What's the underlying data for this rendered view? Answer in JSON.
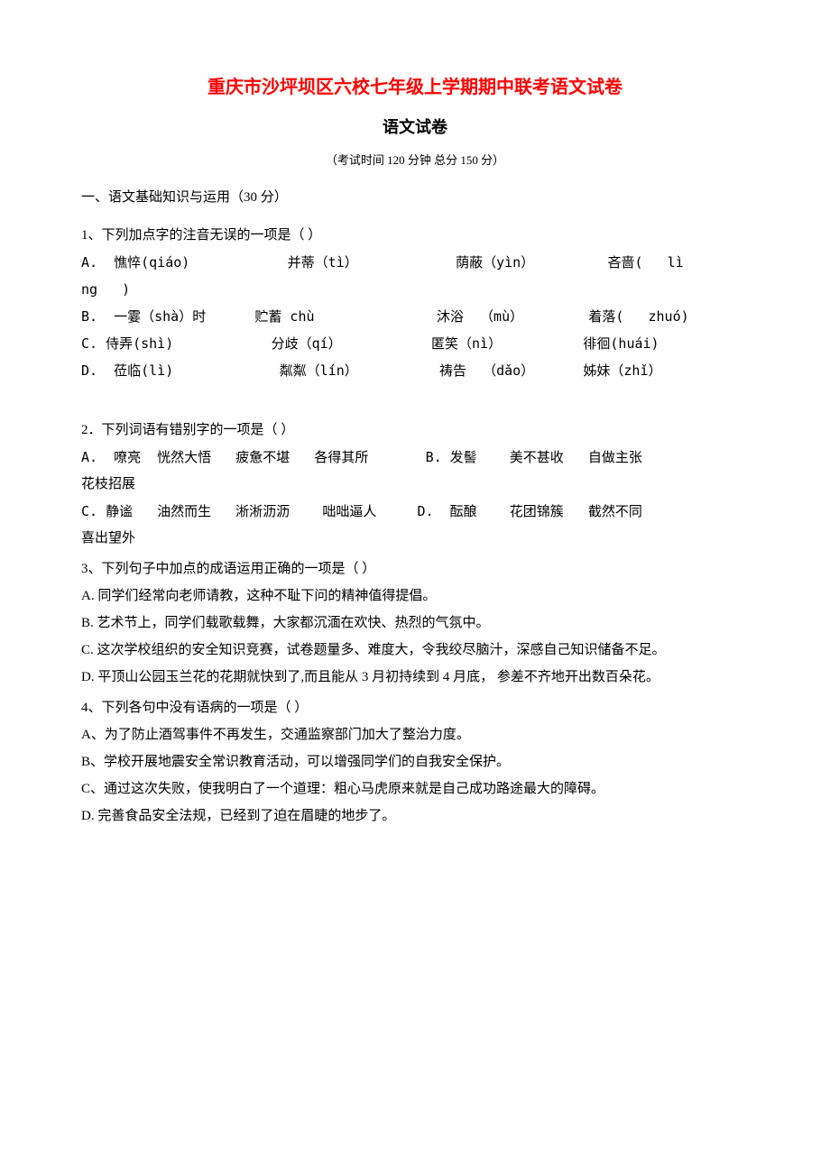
{
  "document": {
    "title_main": "重庆市沙坪坝区六校七年级上学期期中联考语文试卷",
    "title_sub": "语文试卷",
    "exam_info": "（考试时间   120 分钟       总分 150 分）",
    "section_header": "一、语文基础知识与运用（30 分）",
    "questions": [
      {
        "stem": "1、下列加点字的注音无误的一项是（        ）",
        "options": [
          "A.  憔悴(qiáo)            并蒂（tì）            荫蔽（yìn）         吝啬(   lì",
          "ng   )",
          "B.  一霎（shà）时      贮蓄 chù               沐浴  （mù）        着落(   zhuó)",
          "C. 侍弄(shì)            分歧（qí）           匿笑（nì）          徘徊(huái)",
          "D.  莅临(lì)             粼粼（lín）          祷告  （dǎo）      姊妹（zhǐ）"
        ]
      },
      {
        "stem": "2．下列词语有错别字的一项是（       ）",
        "options": [
          "A.  嘹亮  恍然大悟   疲惫不堪   各得其所       B. 发髻    美不甚收   自做主张",
          "花枝招展",
          "C. 静谧   油然而生   淅淅沥沥    咄咄逼人     D.  酝酿    花团锦簇   截然不同",
          "喜出望外"
        ]
      },
      {
        "stem": "3、下列句子中加点的成语运用正确的一项是（        ）",
        "options": [
          "A. 同学们经常向老师请教，这种不耻下问的精神值得提倡。",
          "B.  艺术节上，同学们载歌载舞，大家都沉湎在欢快、热烈的气氛中。",
          "C.  这次学校组织的安全知识竞赛，试卷题量多、难度大，令我绞尽脑汁，深感自己知识储备不足。",
          "D. 平顶山公园玉兰花的花期就快到了,而且能从 3 月初持续到 4 月底， 参差不齐地开出数百朵花。"
        ]
      },
      {
        "stem": "4、下列各句中没有语病的一项是（       ）",
        "options": [
          "A、为了防止酒驾事件不再发生，交通监察部门加大了整治力度。",
          "B、学校开展地震安全常识教育活动，可以增强同学们的自我安全保护。",
          "C、通过这次失败，使我明白了一个道理：粗心马虎原来就是自己成功路途最大的障碍。",
          "D.  完善食品安全法规，已经到了迫在眉睫的地步了。"
        ]
      }
    ]
  },
  "styles": {
    "title_color": "#ff0000",
    "text_color": "#000000",
    "background_color": "#ffffff",
    "title_fontsize": 20,
    "subtitle_fontsize": 18,
    "body_fontsize": 15,
    "info_fontsize": 13,
    "line_height": 2
  }
}
